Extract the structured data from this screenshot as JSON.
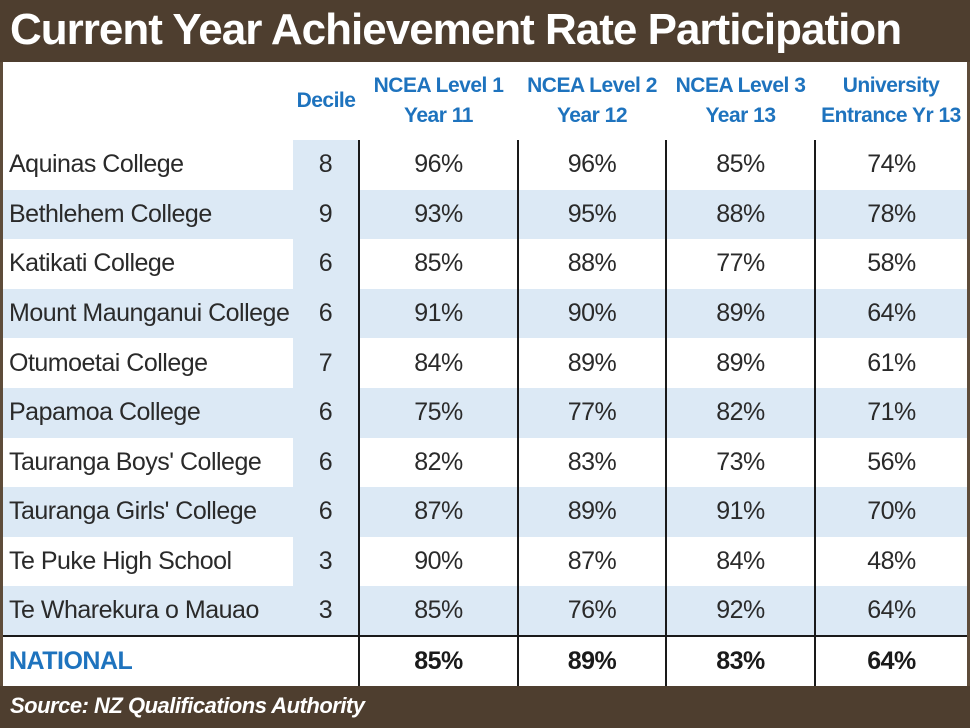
{
  "title": "Current Year Achievement Rate Participation",
  "columns": {
    "decile": "Decile",
    "ncea1": [
      "NCEA Level 1",
      "Year 11"
    ],
    "ncea2": [
      "NCEA Level 2",
      "Year 12"
    ],
    "ncea3": [
      "NCEA Level 3",
      "Year 13"
    ],
    "ue": [
      "University",
      "Entrance Yr 13"
    ]
  },
  "rows": [
    {
      "school": "Aquinas College",
      "decile": "8",
      "ncea1": "96%",
      "ncea2": "96%",
      "ncea3": "85%",
      "ue": "74%"
    },
    {
      "school": "Bethlehem College",
      "decile": "9",
      "ncea1": "93%",
      "ncea2": "95%",
      "ncea3": "88%",
      "ue": "78%"
    },
    {
      "school": "Katikati College",
      "decile": "6",
      "ncea1": "85%",
      "ncea2": "88%",
      "ncea3": "77%",
      "ue": "58%"
    },
    {
      "school": "Mount Maunganui College",
      "decile": "6",
      "ncea1": "91%",
      "ncea2": "90%",
      "ncea3": "89%",
      "ue": "64%"
    },
    {
      "school": "Otumoetai College",
      "decile": "7",
      "ncea1": "84%",
      "ncea2": "89%",
      "ncea3": "89%",
      "ue": "61%"
    },
    {
      "school": "Papamoa College",
      "decile": "6",
      "ncea1": "75%",
      "ncea2": "77%",
      "ncea3": "82%",
      "ue": "71%"
    },
    {
      "school": "Tauranga Boys' College",
      "decile": "6",
      "ncea1": "82%",
      "ncea2": "83%",
      "ncea3": "73%",
      "ue": "56%"
    },
    {
      "school": "Tauranga Girls' College",
      "decile": "6",
      "ncea1": "87%",
      "ncea2": "89%",
      "ncea3": "91%",
      "ue": "70%"
    },
    {
      "school": "Te Puke High School",
      "decile": "3",
      "ncea1": "90%",
      "ncea2": "87%",
      "ncea3": "84%",
      "ue": "48%"
    },
    {
      "school": "Te Wharekura o Mauao",
      "decile": "3",
      "ncea1": "85%",
      "ncea2": "76%",
      "ncea3": "92%",
      "ue": "64%"
    }
  ],
  "national": {
    "label": "NATIONAL",
    "ncea1": "85%",
    "ncea2": "89%",
    "ncea3": "83%",
    "ue": "64%"
  },
  "source": "Source: NZ Qualifications Authority",
  "colors": {
    "header_text": "#1e73be",
    "row_shade": "#dce9f5",
    "banner": "#4e3e2f"
  }
}
